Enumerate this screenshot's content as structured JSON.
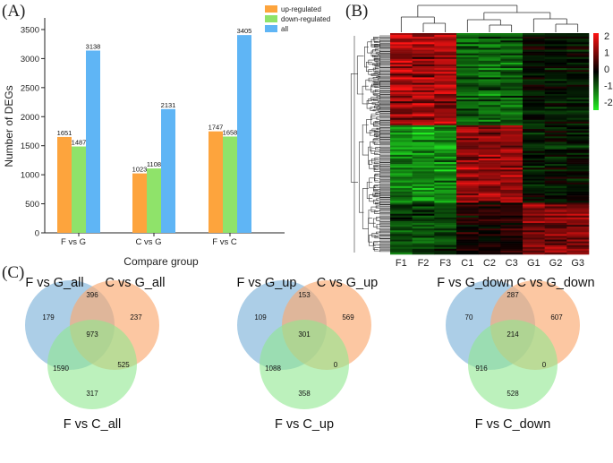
{
  "panels": {
    "a": "(A)",
    "b": "(B)",
    "c": "(C)"
  },
  "chart_data": [
    {
      "type": "bar",
      "title": "",
      "xlabel": "Compare group",
      "ylabel": "Number of DEGs",
      "ylim": [
        0,
        3700
      ],
      "yticks": [
        0,
        500,
        1000,
        1500,
        2000,
        2500,
        3000,
        3500
      ],
      "categories": [
        "F vs G",
        "C vs G",
        "F vs C"
      ],
      "series": [
        {
          "name": "up-regulated",
          "color": "#fda43d",
          "values": [
            1651,
            1023,
            1747
          ]
        },
        {
          "name": "down-regulated",
          "color": "#8fe36a",
          "values": [
            1487,
            1108,
            1658
          ]
        },
        {
          "name": "all",
          "color": "#5fb5f5",
          "values": [
            3138,
            2131,
            3405
          ]
        }
      ],
      "legend": "top-right"
    },
    {
      "type": "heatmap",
      "columns": [
        "F1",
        "F2",
        "F3",
        "C1",
        "C2",
        "C3",
        "G1",
        "G2",
        "G3"
      ],
      "colorbar_ticks": [
        "2",
        "1",
        "0",
        "-1",
        "-2"
      ],
      "colorscale": [
        "#22ee22",
        "#000000",
        "#ff1111"
      ]
    }
  ],
  "venns": [
    {
      "sets": [
        "F vs G_all",
        "C vs G_all",
        "F vs C_all"
      ],
      "regions": {
        "a_only": "179",
        "ab": "396",
        "b_only": "237",
        "abc": "973",
        "ac": "1590",
        "bc": "525",
        "c_only": "317"
      }
    },
    {
      "sets": [
        "F vs G_up",
        "C vs G_up",
        "F vs C_up"
      ],
      "regions": {
        "a_only": "109",
        "ab": "153",
        "b_only": "569",
        "abc": "301",
        "ac": "1088",
        "bc": "0",
        "c_only": "358"
      }
    },
    {
      "sets": [
        "F vs G_down",
        "C vs G_down",
        "F vs C_down"
      ],
      "regions": {
        "a_only": "70",
        "ab": "287",
        "b_only": "607",
        "abc": "214",
        "ac": "916",
        "bc": "0",
        "c_only": "528"
      }
    }
  ],
  "colors": {
    "venn_a": "#7fb3da",
    "venn_b": "#fba970",
    "venn_c": "#8fe88f"
  }
}
